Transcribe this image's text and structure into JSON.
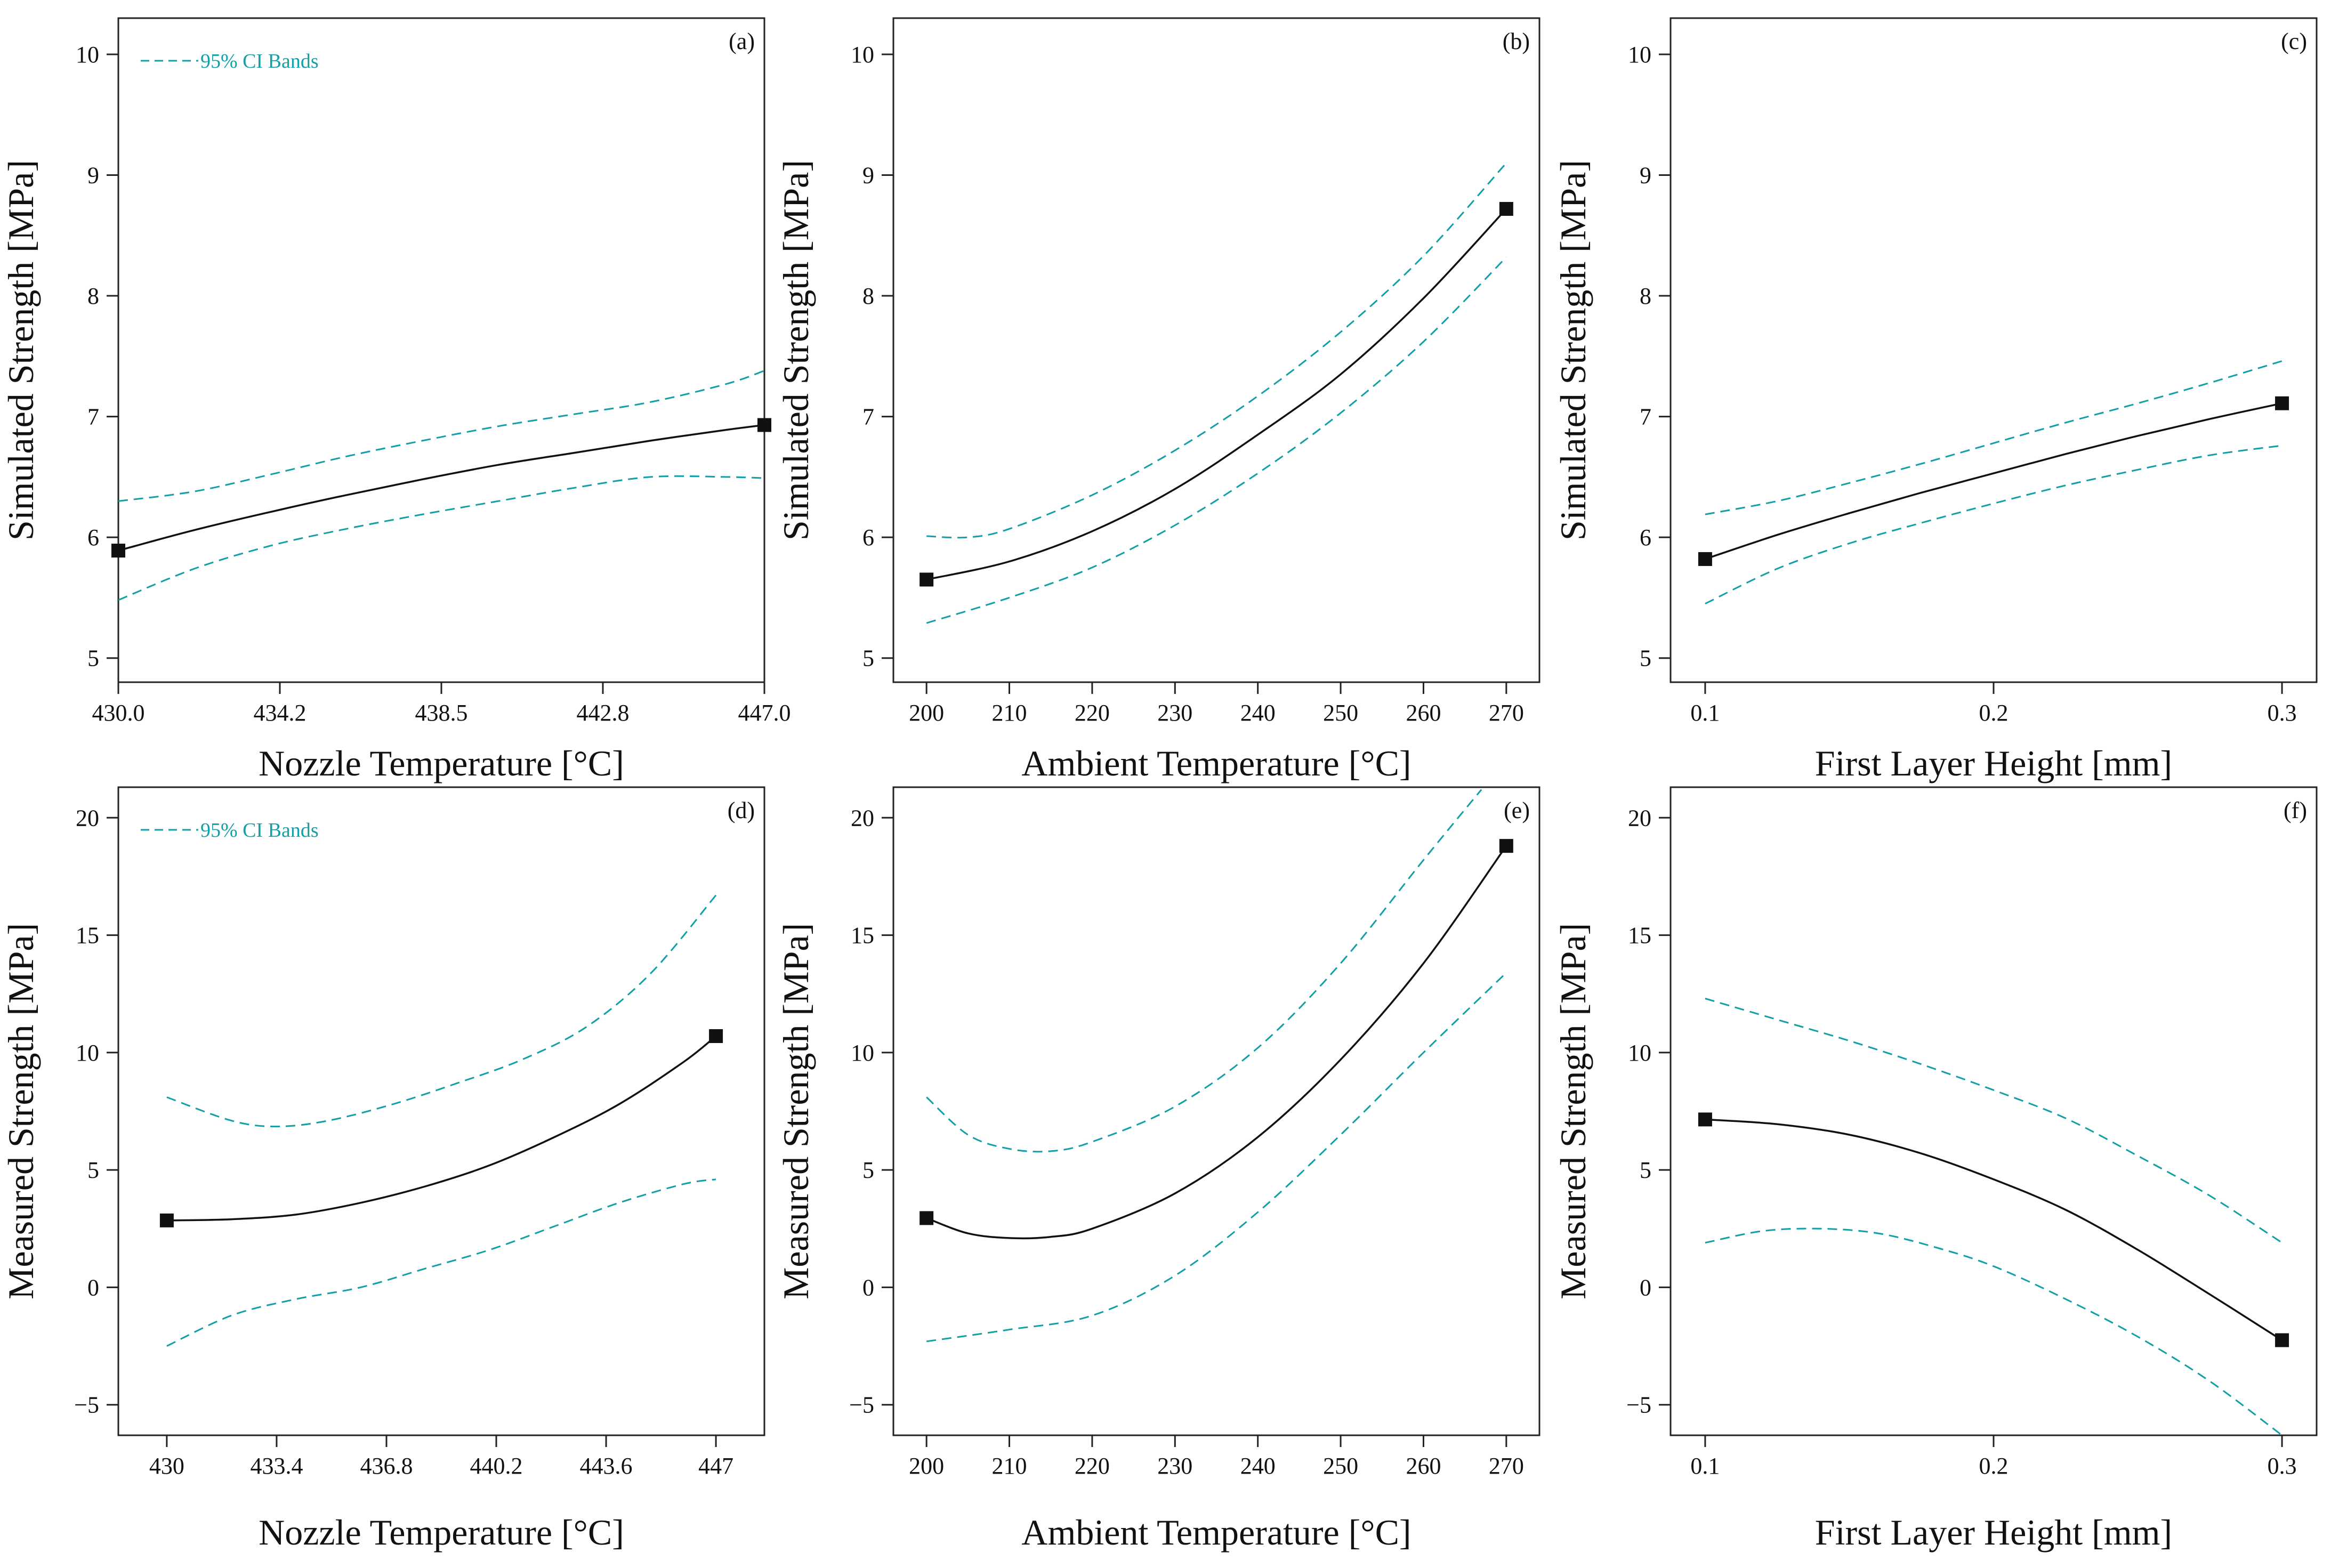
{
  "figure": {
    "colors": {
      "fit": "#111111",
      "ci": "#129fa6",
      "axis": "#222222"
    }
  },
  "chart_data": [
    {
      "panel": "(a)",
      "type": "line",
      "xlabel": "Nozzle Temperature [°C]",
      "ylabel": "Simulated Strength [MPa]",
      "xlim": [
        430,
        447
      ],
      "ylim": [
        4.8,
        10.3
      ],
      "xticks": [
        430,
        434.25,
        438.5,
        442.75,
        447
      ],
      "xtick_labels": [
        "430.0",
        "434.2",
        "438.5",
        "442.8",
        "447.0"
      ],
      "yticks": [
        5,
        6,
        7,
        8,
        9,
        10
      ],
      "ytick_labels": [
        "5",
        "6",
        "7",
        "8",
        "9",
        "10"
      ],
      "legend": {
        "label": "95% CI Bands"
      },
      "series": [
        {
          "name": "Fit",
          "x": [
            430,
            432,
            434,
            436,
            438,
            440,
            442,
            444,
            446,
            447
          ],
          "y": [
            5.89,
            6.06,
            6.21,
            6.35,
            6.48,
            6.6,
            6.7,
            6.8,
            6.89,
            6.93
          ]
        },
        {
          "name": "95% CI upper",
          "x": [
            430,
            432,
            434,
            436,
            438,
            440,
            442,
            444,
            446,
            447
          ],
          "y": [
            6.3,
            6.38,
            6.52,
            6.67,
            6.8,
            6.92,
            7.02,
            7.12,
            7.27,
            7.38
          ]
        },
        {
          "name": "95% CI lower",
          "x": [
            430,
            432,
            434,
            436,
            438,
            440,
            442,
            444,
            446,
            447
          ],
          "y": [
            5.48,
            5.74,
            5.93,
            6.07,
            6.19,
            6.3,
            6.41,
            6.5,
            6.5,
            6.49
          ]
        }
      ],
      "markers": {
        "x": [
          430,
          447
        ],
        "y": [
          5.89,
          6.93
        ]
      }
    },
    {
      "panel": "(b)",
      "type": "line",
      "xlabel": "Ambient Temperature [°C]",
      "ylabel": "Simulated Strength [MPa]",
      "xlim": [
        196,
        274
      ],
      "ylim": [
        4.8,
        10.3
      ],
      "xticks": [
        200,
        210,
        220,
        230,
        240,
        250,
        260,
        270
      ],
      "xtick_labels": [
        "200",
        "210",
        "220",
        "230",
        "240",
        "250",
        "260",
        "270"
      ],
      "yticks": [
        5,
        6,
        7,
        8,
        9,
        10
      ],
      "ytick_labels": [
        "5",
        "6",
        "7",
        "8",
        "9",
        "10"
      ],
      "legend": null,
      "series": [
        {
          "name": "Fit",
          "x": [
            200,
            210,
            220,
            230,
            240,
            250,
            260,
            270
          ],
          "y": [
            5.65,
            5.8,
            6.05,
            6.4,
            6.85,
            7.35,
            7.98,
            8.72
          ]
        },
        {
          "name": "95% CI upper",
          "x": [
            200,
            205,
            210,
            220,
            230,
            240,
            250,
            260,
            270
          ],
          "y": [
            6.01,
            6.0,
            6.07,
            6.35,
            6.72,
            7.17,
            7.7,
            8.33,
            9.1
          ]
        },
        {
          "name": "95% CI lower",
          "x": [
            200,
            210,
            220,
            230,
            240,
            250,
            260,
            270
          ],
          "y": [
            5.29,
            5.5,
            5.75,
            6.1,
            6.53,
            7.03,
            7.62,
            8.32
          ]
        }
      ],
      "markers": {
        "x": [
          200,
          270
        ],
        "y": [
          5.65,
          8.72
        ]
      }
    },
    {
      "panel": "(c)",
      "type": "line",
      "xlabel": "First Layer Height [mm]",
      "ylabel": "Simulated Strength [MPa]",
      "xlim": [
        0.088,
        0.312
      ],
      "ylim": [
        4.8,
        10.3
      ],
      "xticks": [
        0.1,
        0.2,
        0.3
      ],
      "xtick_labels": [
        "0.1",
        "0.2",
        "0.3"
      ],
      "yticks": [
        5,
        6,
        7,
        8,
        9,
        10
      ],
      "ytick_labels": [
        "5",
        "6",
        "7",
        "8",
        "9",
        "10"
      ],
      "legend": null,
      "series": [
        {
          "name": "Fit",
          "x": [
            0.1,
            0.125,
            0.15,
            0.175,
            0.2,
            0.225,
            0.25,
            0.275,
            0.3
          ],
          "y": [
            5.82,
            6.02,
            6.2,
            6.37,
            6.53,
            6.69,
            6.84,
            6.98,
            7.11
          ]
        },
        {
          "name": "95% CI upper",
          "x": [
            0.1,
            0.125,
            0.15,
            0.175,
            0.2,
            0.225,
            0.25,
            0.275,
            0.3
          ],
          "y": [
            6.19,
            6.3,
            6.45,
            6.61,
            6.78,
            6.95,
            7.11,
            7.28,
            7.46
          ]
        },
        {
          "name": "95% CI lower",
          "x": [
            0.1,
            0.125,
            0.15,
            0.175,
            0.2,
            0.225,
            0.25,
            0.275,
            0.3
          ],
          "y": [
            5.45,
            5.74,
            5.95,
            6.12,
            6.28,
            6.43,
            6.56,
            6.68,
            6.76
          ]
        }
      ],
      "markers": {
        "x": [
          0.1,
          0.3
        ],
        "y": [
          5.82,
          7.11
        ]
      }
    },
    {
      "panel": "(d)",
      "type": "line",
      "xlabel": "Nozzle Temperature [°C]",
      "ylabel": "Measured Strength [MPa]",
      "xlim": [
        428.5,
        448.5
      ],
      "ylim": [
        -6.3,
        21.3
      ],
      "xticks": [
        430,
        433.4,
        436.8,
        440.2,
        443.6,
        447
      ],
      "xtick_labels": [
        "430",
        "433.4",
        "436.8",
        "440.2",
        "443.6",
        "447"
      ],
      "yticks": [
        -5,
        0,
        5,
        10,
        15,
        20
      ],
      "ytick_labels": [
        "−5",
        "0",
        "5",
        "10",
        "15",
        "20"
      ],
      "legend": {
        "label": "95% CI Bands"
      },
      "series": [
        {
          "name": "Fit",
          "x": [
            430,
            432,
            434,
            436,
            438,
            440,
            442,
            444,
            446,
            447
          ],
          "y": [
            2.85,
            2.9,
            3.1,
            3.6,
            4.3,
            5.2,
            6.4,
            7.8,
            9.6,
            10.7
          ]
        },
        {
          "name": "95% CI upper",
          "x": [
            430,
            432,
            433.4,
            435,
            437,
            439,
            441,
            443,
            445,
            447
          ],
          "y": [
            8.1,
            7.1,
            6.85,
            7.1,
            7.8,
            8.7,
            9.7,
            11.1,
            13.4,
            16.7
          ]
        },
        {
          "name": "95% CI lower",
          "x": [
            430,
            432,
            434,
            436,
            438,
            440,
            442,
            444,
            446,
            447
          ],
          "y": [
            -2.5,
            -1.2,
            -0.5,
            0.0,
            0.8,
            1.6,
            2.6,
            3.6,
            4.4,
            4.6
          ]
        }
      ],
      "markers": {
        "x": [
          430,
          447
        ],
        "y": [
          2.85,
          10.7
        ]
      }
    },
    {
      "panel": "(e)",
      "type": "line",
      "xlabel": "Ambient Temperature [°C]",
      "ylabel": "Measured Strength [MPa]",
      "xlim": [
        196,
        274
      ],
      "ylim": [
        -6.3,
        21.3
      ],
      "xticks": [
        200,
        210,
        220,
        230,
        240,
        250,
        260,
        270
      ],
      "xtick_labels": [
        "200",
        "210",
        "220",
        "230",
        "240",
        "250",
        "260",
        "270"
      ],
      "yticks": [
        -5,
        0,
        5,
        10,
        15,
        20
      ],
      "ytick_labels": [
        "−5",
        "0",
        "5",
        "10",
        "15",
        "20"
      ],
      "legend": null,
      "series": [
        {
          "name": "Fit",
          "x": [
            200,
            205,
            210,
            215,
            220,
            230,
            240,
            250,
            260,
            270
          ],
          "y": [
            2.95,
            2.3,
            2.1,
            2.15,
            2.5,
            4.0,
            6.4,
            9.7,
            13.8,
            18.8
          ]
        },
        {
          "name": "95% CI upper",
          "x": [
            200,
            205,
            210,
            215,
            220,
            230,
            240,
            250,
            260,
            267
          ],
          "y": [
            8.1,
            6.5,
            5.9,
            5.8,
            6.2,
            7.7,
            10.2,
            13.8,
            18.2,
            21.2
          ]
        },
        {
          "name": "95% CI lower",
          "x": [
            200,
            210,
            220,
            230,
            240,
            250,
            260,
            270
          ],
          "y": [
            -2.3,
            -1.8,
            -1.2,
            0.5,
            3.2,
            6.5,
            10.0,
            13.4
          ]
        }
      ],
      "markers": {
        "x": [
          200,
          270
        ],
        "y": [
          2.95,
          18.8
        ]
      }
    },
    {
      "panel": "(f)",
      "type": "line",
      "xlabel": "First Layer Height [mm]",
      "ylabel": "Measured Strength [MPa]",
      "xlim": [
        0.088,
        0.312
      ],
      "ylim": [
        -6.3,
        21.3
      ],
      "xticks": [
        0.1,
        0.2,
        0.3
      ],
      "xtick_labels": [
        "0.1",
        "0.2",
        "0.3"
      ],
      "yticks": [
        -5,
        0,
        5,
        10,
        15,
        20
      ],
      "ytick_labels": [
        "−5",
        "0",
        "5",
        "10",
        "15",
        "20"
      ],
      "legend": null,
      "series": [
        {
          "name": "Fit",
          "x": [
            0.1,
            0.125,
            0.15,
            0.175,
            0.2,
            0.225,
            0.25,
            0.275,
            0.3
          ],
          "y": [
            7.15,
            6.95,
            6.5,
            5.7,
            4.6,
            3.3,
            1.6,
            -0.3,
            -2.25
          ]
        },
        {
          "name": "95% CI upper",
          "x": [
            0.1,
            0.125,
            0.15,
            0.175,
            0.2,
            0.225,
            0.25,
            0.275,
            0.3
          ],
          "y": [
            12.3,
            11.4,
            10.5,
            9.5,
            8.4,
            7.2,
            5.6,
            3.9,
            1.9
          ]
        },
        {
          "name": "95% CI lower",
          "x": [
            0.1,
            0.12,
            0.14,
            0.16,
            0.18,
            0.2,
            0.225,
            0.25,
            0.275,
            0.3
          ],
          "y": [
            1.9,
            2.4,
            2.5,
            2.3,
            1.7,
            0.9,
            -0.5,
            -2.1,
            -4.0,
            -6.3
          ]
        }
      ],
      "markers": {
        "x": [
          0.1,
          0.3
        ],
        "y": [
          7.15,
          -2.25
        ]
      }
    }
  ]
}
